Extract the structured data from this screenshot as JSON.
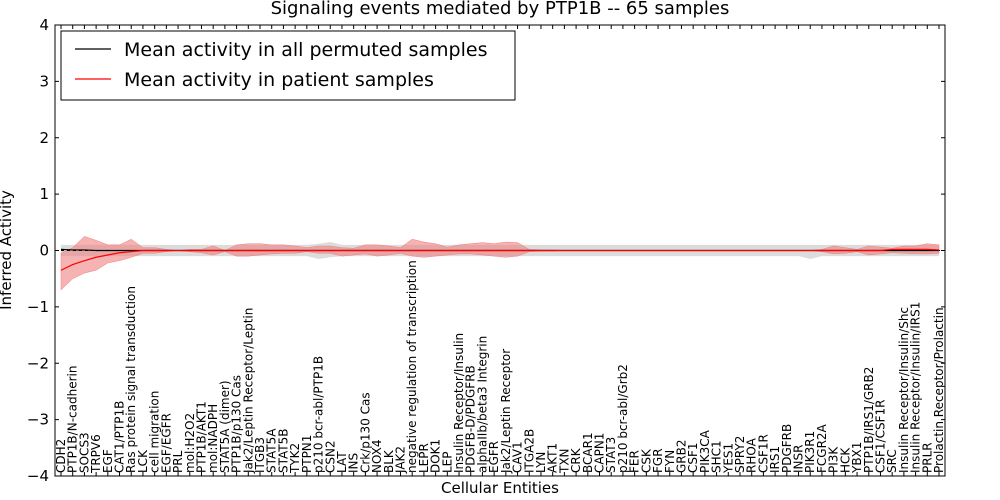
{
  "chart_data": {
    "type": "line",
    "title": "Signaling events mediated by PTP1B -- 65 samples",
    "xlabel": "Cellular Entities",
    "ylabel": "Inferred Activity",
    "ylim": [
      -4,
      4
    ],
    "yticks": [
      4,
      3,
      2,
      1,
      0,
      -1,
      -2,
      -3,
      -4
    ],
    "ytick_labels": [
      "4",
      "3",
      "2",
      "1",
      "0",
      "−1",
      "−2",
      "−3",
      "−4"
    ],
    "legend": {
      "location": "top-left",
      "entries": [
        "Mean activity in all permuted samples",
        "Mean activity in patient samples"
      ]
    },
    "colors": {
      "permuted": "#000000",
      "patient": "#ff0000",
      "patient_band": "#f08080",
      "permuted_band": "#d3d3d3"
    },
    "categories": [
      "CDH2",
      "PTP1B/N-cadherin",
      "SOCS3",
      "TRPV6",
      "EGF",
      "CAT1/PTP1B",
      "Ras protein signal transduction",
      "LCK",
      "cell migration",
      "EGF/EGFR",
      "PRL",
      "mol:H2O2",
      "PTP1B/AKT1",
      "mol:NADPH",
      "STAT5A (dimer)",
      "PTP1B/p130 Cas",
      "Jak2/Leptin Receptor/Leptin",
      "ITGB3",
      "STAT5A",
      "STAT5B",
      "TYK2",
      "PTPN1",
      "p210 bcr-abl/PTP1B",
      "CSN2",
      "LAT",
      "INS",
      "Crk/p130 Cas",
      "NOX4",
      "BLK",
      "JAK2",
      "negative regulation of transcription",
      "LEPR",
      "DOK1",
      "LEP",
      "Insulin Receptor/Insulin",
      "PDGFB-D/PDGFRB",
      "alphaIIb/beta3 Integrin",
      "EGFR",
      "Jak2/Leptin Receptor",
      "CAV1",
      "ITGA2B",
      "LYN",
      "AKT1",
      "TXN",
      "CRK",
      "BCAR1",
      "CAPN1",
      "STAT3",
      "p210 bcr-abl/Grb2",
      "FER",
      "CSK",
      "FGR",
      "FYN",
      "GRB2",
      "CSF1",
      "PIK3CA",
      "SHC1",
      "YES1",
      "SPRY2",
      "RHOA",
      "CSF1R",
      "IRS1",
      "PDGFRB",
      "INSR",
      "PIK3R1",
      "FCGR2A",
      "PI3K",
      "HCK",
      "YBX1",
      "PTP1B/IRS1/GRB2",
      "CSF1/CSF1R",
      "SRC",
      "Insulin Receptor/Insulin/Shc",
      "Insulin Receptor/Insulin/IRS1",
      "PRLR",
      "Prolactin Receptor/Prolactin"
    ],
    "series": [
      {
        "name": "Mean activity in all permuted samples",
        "values": [
          0.02,
          0.01,
          0.01,
          0.0,
          0.0,
          0.0,
          0.0,
          0.0,
          0.0,
          0.0,
          0.0,
          0.0,
          0.0,
          0.0,
          0.0,
          0.0,
          0.0,
          0.0,
          0.0,
          0.0,
          0.0,
          0.0,
          0.0,
          0.0,
          0.0,
          0.0,
          0.0,
          0.0,
          0.0,
          0.0,
          0.0,
          0.0,
          0.0,
          0.0,
          0.0,
          0.0,
          0.0,
          0.0,
          0.0,
          0.0,
          0.0,
          0.0,
          0.0,
          0.0,
          0.0,
          0.0,
          0.0,
          0.0,
          0.0,
          0.0,
          0.0,
          0.0,
          0.0,
          0.0,
          0.0,
          0.0,
          0.0,
          0.0,
          0.0,
          0.0,
          0.0,
          0.0,
          0.0,
          0.0,
          0.0,
          0.0,
          0.0,
          0.0,
          0.0,
          0.0,
          0.0,
          0.0,
          0.0,
          0.0,
          0.0,
          0.0
        ],
        "band_upper": [
          0.1,
          0.1,
          0.1,
          0.1,
          0.1,
          0.1,
          0.1,
          0.1,
          0.1,
          0.1,
          0.1,
          0.1,
          0.1,
          0.1,
          0.1,
          0.1,
          0.1,
          0.1,
          0.1,
          0.1,
          0.1,
          0.1,
          0.12,
          0.15,
          0.1,
          0.1,
          0.1,
          0.1,
          0.1,
          0.1,
          0.1,
          0.1,
          0.1,
          0.1,
          0.1,
          0.1,
          0.1,
          0.1,
          0.1,
          0.1,
          0.1,
          0.1,
          0.1,
          0.1,
          0.1,
          0.1,
          0.1,
          0.1,
          0.1,
          0.1,
          0.1,
          0.1,
          0.1,
          0.1,
          0.1,
          0.1,
          0.1,
          0.1,
          0.1,
          0.1,
          0.1,
          0.1,
          0.1,
          0.1,
          0.1,
          0.1,
          0.1,
          0.1,
          0.1,
          0.1,
          0.1,
          0.1,
          0.1,
          0.1,
          0.1,
          0.1
        ],
        "band_lower": [
          -0.1,
          -0.1,
          -0.1,
          -0.1,
          -0.1,
          -0.1,
          -0.1,
          -0.1,
          -0.1,
          -0.1,
          -0.1,
          -0.1,
          -0.1,
          -0.1,
          -0.1,
          -0.1,
          -0.1,
          -0.1,
          -0.1,
          -0.1,
          -0.1,
          -0.1,
          -0.15,
          -0.12,
          -0.1,
          -0.1,
          -0.1,
          -0.1,
          -0.1,
          -0.1,
          -0.1,
          -0.1,
          -0.1,
          -0.1,
          -0.1,
          -0.1,
          -0.1,
          -0.1,
          -0.1,
          -0.1,
          -0.1,
          -0.1,
          -0.1,
          -0.1,
          -0.1,
          -0.1,
          -0.1,
          -0.1,
          -0.1,
          -0.1,
          -0.1,
          -0.1,
          -0.1,
          -0.1,
          -0.1,
          -0.1,
          -0.1,
          -0.1,
          -0.1,
          -0.1,
          -0.1,
          -0.1,
          -0.1,
          -0.1,
          -0.15,
          -0.1,
          -0.1,
          -0.1,
          -0.1,
          -0.1,
          -0.1,
          -0.1,
          -0.1,
          -0.1,
          -0.1,
          -0.1
        ]
      },
      {
        "name": "Mean activity in patient samples",
        "values": [
          -0.35,
          -0.25,
          -0.18,
          -0.12,
          -0.08,
          -0.04,
          -0.02,
          0.0,
          0.0,
          0.0,
          0.0,
          0.0,
          0.0,
          0.0,
          0.0,
          0.0,
          0.0,
          0.0,
          0.0,
          0.0,
          0.0,
          0.0,
          0.0,
          0.0,
          0.0,
          0.0,
          0.0,
          0.0,
          0.0,
          0.0,
          0.0,
          0.0,
          0.0,
          0.0,
          0.0,
          0.0,
          0.0,
          0.0,
          0.0,
          0.0,
          0.0,
          0.0,
          0.0,
          0.0,
          0.0,
          0.0,
          0.0,
          0.0,
          0.0,
          0.0,
          0.0,
          0.0,
          0.0,
          0.0,
          0.0,
          0.0,
          0.0,
          0.0,
          0.0,
          0.0,
          0.0,
          0.0,
          0.0,
          0.0,
          0.0,
          0.0,
          0.0,
          0.0,
          0.0,
          0.0,
          0.0,
          0.02,
          0.02,
          0.02,
          0.02,
          0.01
        ],
        "band_upper": [
          -0.05,
          0.05,
          0.25,
          0.18,
          0.1,
          0.1,
          0.2,
          0.05,
          0.05,
          0.02,
          0.0,
          0.02,
          0.02,
          0.08,
          0.0,
          0.1,
          0.12,
          0.12,
          0.1,
          0.1,
          0.08,
          0.05,
          0.08,
          0.08,
          0.05,
          0.04,
          0.1,
          0.1,
          0.08,
          0.05,
          0.2,
          0.15,
          0.12,
          0.06,
          0.1,
          0.12,
          0.14,
          0.12,
          0.15,
          0.14,
          0.02,
          0.01,
          0.01,
          0.0,
          0.0,
          0.0,
          0.0,
          0.0,
          0.0,
          0.0,
          0.0,
          0.0,
          0.0,
          0.0,
          0.0,
          0.0,
          0.0,
          0.0,
          0.0,
          0.0,
          0.0,
          0.0,
          0.0,
          0.0,
          0.0,
          0.02,
          0.08,
          0.05,
          0.02,
          0.08,
          0.06,
          0.04,
          0.08,
          0.08,
          0.12,
          0.1
        ],
        "band_lower": [
          -0.7,
          -0.5,
          -0.4,
          -0.35,
          -0.22,
          -0.18,
          -0.12,
          -0.05,
          -0.05,
          -0.02,
          0.0,
          -0.02,
          -0.04,
          -0.08,
          -0.02,
          -0.1,
          -0.1,
          -0.08,
          -0.06,
          -0.05,
          -0.05,
          -0.02,
          -0.05,
          -0.05,
          -0.1,
          -0.08,
          -0.06,
          -0.1,
          -0.08,
          -0.05,
          -0.1,
          -0.12,
          -0.1,
          -0.08,
          -0.06,
          -0.06,
          -0.08,
          -0.1,
          -0.12,
          -0.1,
          -0.02,
          -0.01,
          -0.01,
          0.0,
          0.0,
          0.0,
          0.0,
          0.0,
          0.0,
          0.0,
          0.0,
          0.0,
          0.0,
          0.0,
          0.0,
          0.0,
          0.0,
          0.0,
          0.0,
          0.0,
          0.0,
          0.0,
          0.0,
          0.0,
          0.0,
          -0.02,
          -0.06,
          -0.05,
          -0.02,
          -0.08,
          -0.06,
          -0.04,
          -0.05,
          -0.06,
          -0.06,
          -0.05
        ]
      }
    ]
  }
}
